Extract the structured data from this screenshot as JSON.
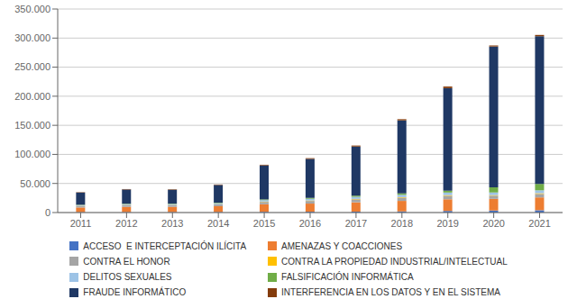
{
  "chart_data": {
    "type": "bar",
    "stacked": true,
    "grid": true,
    "legend": "bottom",
    "categories": [
      "2011",
      "2012",
      "2013",
      "2014",
      "2015",
      "2016",
      "2017",
      "2018",
      "2019",
      "2020",
      "2021"
    ],
    "series": [
      {
        "name": "ACCESO  E INTERCEPTACIÓN ILÍCITA",
        "color": "#4472C4",
        "values": [
          700,
          800,
          800,
          900,
          1200,
          1400,
          1600,
          2000,
          2800,
          3500,
          4000
        ]
      },
      {
        "name": "AMENAZAS Y COACCIONES",
        "color": "#ED7D31",
        "values": [
          8000,
          9000,
          9000,
          10000,
          13000,
          14000,
          16000,
          18000,
          20000,
          20000,
          22000
        ]
      },
      {
        "name": "CONTRA EL HONOR",
        "color": "#A5A5A5",
        "values": [
          2500,
          2800,
          2800,
          3000,
          4000,
          4500,
          5000,
          5500,
          6000,
          5500,
          6000
        ]
      },
      {
        "name": "CONTRA LA PROPIEDAD INDUSTRIAL/INTELECTUAL",
        "color": "#FFC000",
        "values": [
          400,
          450,
          450,
          500,
          700,
          800,
          900,
          1000,
          1100,
          1000,
          1200
        ]
      },
      {
        "name": "DELITOS SEXUALES",
        "color": "#9DC3E6",
        "values": [
          1200,
          1400,
          1500,
          1700,
          2500,
          3000,
          3500,
          4000,
          4500,
          4500,
          5000
        ]
      },
      {
        "name": "FALSIFICACIÓN INFORMÁTICA",
        "color": "#70AD47",
        "values": [
          600,
          700,
          700,
          800,
          1200,
          1500,
          2000,
          2500,
          3000,
          9000,
          11000
        ]
      },
      {
        "name": "FRAUDE INFORMÁTICO",
        "color": "#1F3864",
        "values": [
          21000,
          24500,
          24000,
          30500,
          58500,
          67000,
          84500,
          125500,
          176500,
          242000,
          254000
        ]
      },
      {
        "name": "INTERFERENCIA EN LOS DATOS Y EN EL SISTEMA",
        "color": "#843C0C",
        "values": [
          600,
          700,
          750,
          800,
          1100,
          1300,
          1700,
          2000,
          2800,
          1800,
          2200
        ]
      }
    ],
    "ylim": [
      0,
      350000
    ],
    "yticks": [
      0,
      {
        "value": 50000,
        "label": "50.000"
      },
      {
        "value": 100000,
        "label": "100.000"
      },
      {
        "value": 150000,
        "label": "150.000"
      },
      {
        "value": 200000,
        "label": "200.000"
      },
      {
        "value": 250000,
        "label": "250.000"
      },
      {
        "value": 300000,
        "label": "300.000"
      },
      {
        "value": 350000,
        "label": "350.000"
      }
    ]
  }
}
